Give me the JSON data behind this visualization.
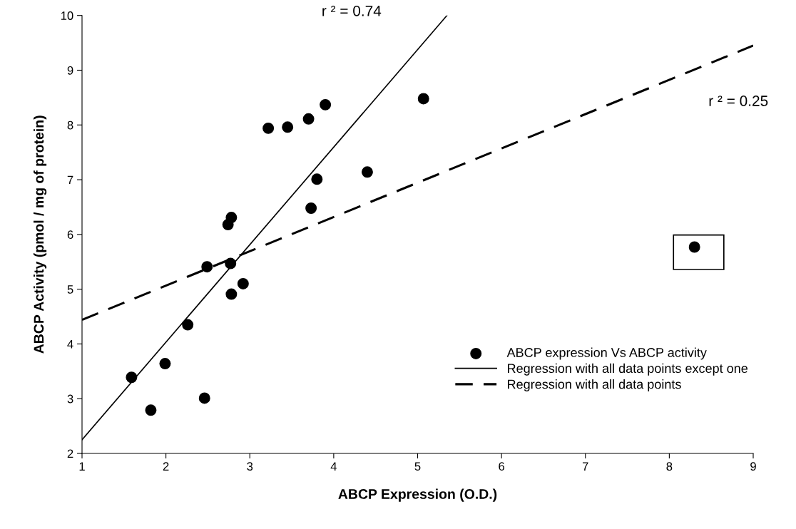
{
  "chart_data": {
    "type": "scatter",
    "xlabel": "ABCP Expression (O.D.)",
    "ylabel": "ABCP Activity (pmol / mg of protein)",
    "xlim": [
      1,
      9
    ],
    "xticks": [
      1,
      2,
      3,
      4,
      5,
      6,
      7,
      8,
      9
    ],
    "ylim": [
      2,
      10
    ],
    "yticks": [
      2,
      3,
      4,
      5,
      6,
      7,
      8,
      9,
      10
    ],
    "grid": false,
    "legend": "bottom right",
    "series": [
      {
        "name": "ABCP expression Vs ABCP activity",
        "marker": "circle",
        "color": "#000000",
        "x": [
          1.59,
          1.82,
          1.99,
          2.26,
          2.46,
          2.49,
          2.74,
          2.78,
          2.77,
          2.78,
          2.92,
          3.22,
          3.45,
          3.7,
          3.9,
          3.8,
          3.73,
          4.4,
          5.07,
          8.3
        ],
        "values": [
          3.39,
          2.79,
          3.64,
          4.35,
          3.01,
          5.41,
          6.18,
          6.31,
          5.47,
          4.91,
          5.1,
          7.94,
          7.96,
          8.11,
          8.37,
          7.01,
          6.48,
          7.14,
          8.48,
          5.77
        ]
      },
      {
        "name": "Regression with all data points except one",
        "type": "line",
        "marker": "none",
        "line_style": "solid",
        "color": "#000000",
        "x": [
          1,
          5.35
        ],
        "values": [
          2.25,
          10
        ]
      },
      {
        "name": "Regression with all data points",
        "type": "line",
        "marker": "none",
        "line_style": "dashed",
        "color": "#000000",
        "x": [
          1,
          9
        ],
        "values": [
          4.44,
          9.45
        ]
      }
    ],
    "annotations": [
      "r ² = 0.74",
      "r ² = 0.25"
    ]
  }
}
